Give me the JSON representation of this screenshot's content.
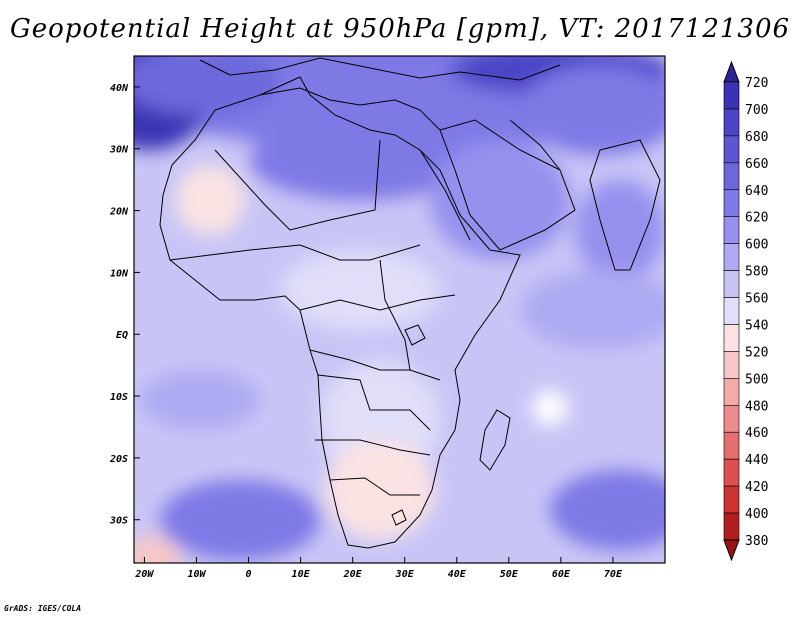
{
  "title": "Geopotential Height at 950hPa [gpm], VT: 2017121306",
  "credit": "GrADS: IGES/COLA",
  "map": {
    "lon_labels": [
      "20W",
      "10W",
      "0",
      "10E",
      "20E",
      "30E",
      "40E",
      "50E",
      "60E",
      "70E"
    ],
    "lon_values": [
      -20,
      -10,
      0,
      10,
      20,
      30,
      40,
      50,
      60,
      70
    ],
    "lat_labels": [
      "40N",
      "30N",
      "20N",
      "10N",
      "EQ",
      "10S",
      "20S",
      "30S"
    ],
    "lat_values": [
      40,
      30,
      20,
      10,
      0,
      -10,
      -20,
      -30
    ],
    "extent": {
      "lon_min": -22,
      "lon_max": 80,
      "lat_min": -37,
      "lat_max": 45
    }
  },
  "colorbar": {
    "labels": [
      "720",
      "700",
      "680",
      "660",
      "640",
      "620",
      "600",
      "580",
      "560",
      "540",
      "520",
      "500",
      "480",
      "460",
      "440",
      "420",
      "400",
      "380"
    ],
    "colors": [
      "#2a2496",
      "#3a34b4",
      "#4b45c6",
      "#5c56d2",
      "#6d67dc",
      "#7f79e6",
      "#9691ee",
      "#aeaaf3",
      "#c8c5f6",
      "#e0def9",
      "#fbe3e3",
      "#f7c7c7",
      "#f2aaaa",
      "#ec8c8c",
      "#e46e6e",
      "#dc5050",
      "#cc3434",
      "#b21e1e",
      "#9a1212"
    ]
  }
}
